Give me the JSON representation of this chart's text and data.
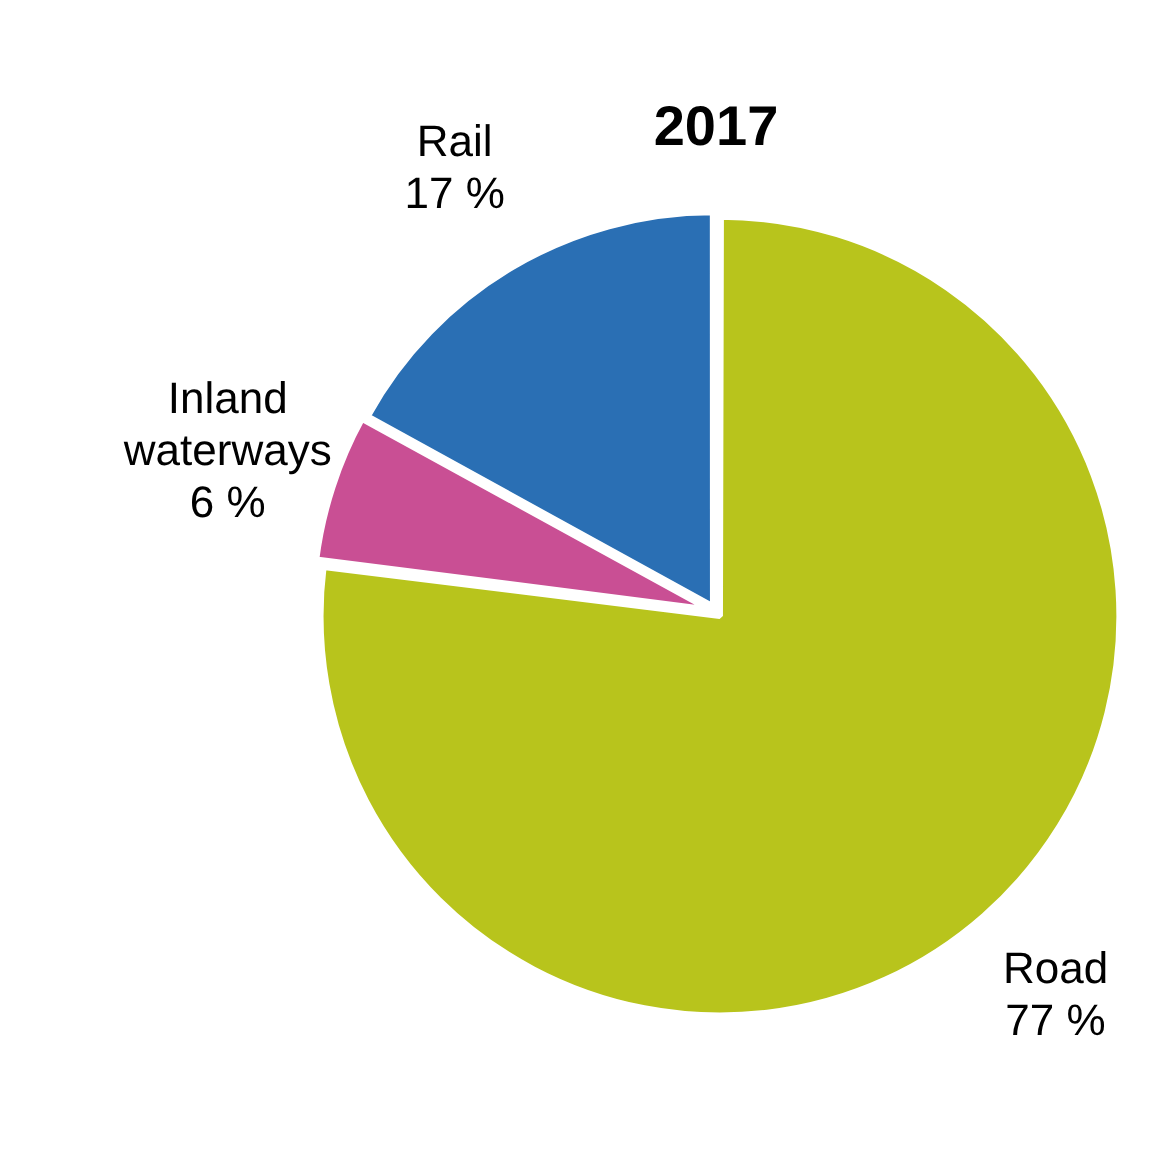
{
  "chart_data": {
    "type": "pie",
    "title": "2017",
    "categories": [
      "Road",
      "Inland waterways",
      "Rail"
    ],
    "values": [
      77,
      6,
      17
    ],
    "colors": [
      "#b8c41c",
      "#c94f94",
      "#2a6fb4"
    ],
    "value_labels": [
      "77 %",
      "6 %",
      "17 %"
    ],
    "legend": false
  }
}
